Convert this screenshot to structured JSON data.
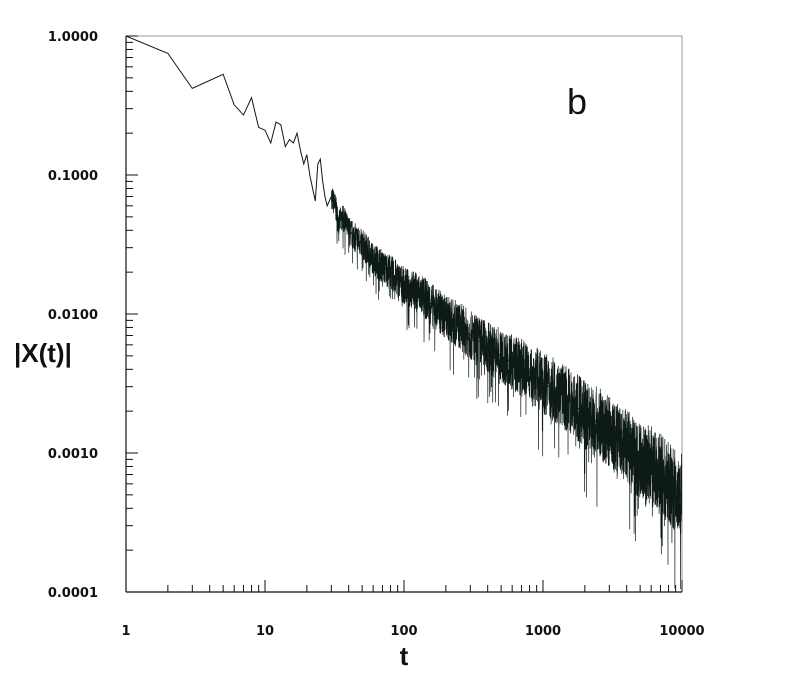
{
  "chart_data": {
    "type": "line",
    "xlabel": "|X(t)|",
    "xlabel_note": "",
    "x_axis_label": "t",
    "y_axis_label": "|X(t)|",
    "panel_label": "b",
    "xscale": "log",
    "yscale": "log",
    "xlim": [
      1,
      10000
    ],
    "ylim": [
      0.0001,
      1.0
    ],
    "x_tick_labels": [
      "1",
      "10",
      "100",
      "1000",
      "10000"
    ],
    "x_tick_values": [
      1,
      10,
      100,
      1000,
      10000
    ],
    "y_tick_labels": [
      "1.0000",
      "0.1000",
      "0.0100",
      "0.0010",
      "0.0001"
    ],
    "y_tick_values": [
      1.0,
      0.1,
      0.01,
      0.001,
      0.0001
    ],
    "grid": false,
    "line_color": "#0d1a17",
    "series": [
      {
        "x": [
          1,
          2,
          3,
          5,
          6,
          7,
          8,
          9,
          10,
          11,
          12,
          13,
          14,
          15,
          16,
          17,
          18,
          19,
          20,
          21,
          22,
          23,
          24,
          25,
          26,
          27,
          28,
          30,
          32,
          34,
          36,
          38,
          40,
          45,
          50,
          60,
          70,
          80,
          100,
          130,
          170,
          200,
          260,
          300,
          400,
          500,
          600,
          800,
          1000,
          1300,
          1600,
          2000,
          2600,
          3000,
          3500,
          4000,
          5000,
          6000,
          7000,
          8000,
          9000,
          10000
        ],
        "y": [
          1.0,
          0.75,
          0.42,
          0.53,
          0.32,
          0.27,
          0.36,
          0.22,
          0.21,
          0.17,
          0.24,
          0.23,
          0.16,
          0.18,
          0.17,
          0.2,
          0.15,
          0.12,
          0.14,
          0.1,
          0.08,
          0.065,
          0.12,
          0.13,
          0.09,
          0.07,
          0.06,
          0.07,
          0.06,
          0.045,
          0.05,
          0.045,
          0.04,
          0.035,
          0.032,
          0.025,
          0.022,
          0.02,
          0.016,
          0.014,
          0.011,
          0.0095,
          0.008,
          0.007,
          0.0058,
          0.005,
          0.0045,
          0.0038,
          0.0032,
          0.0027,
          0.0023,
          0.0019,
          0.0016,
          0.0014,
          0.0012,
          0.0011,
          0.0009,
          0.0008,
          0.0007,
          0.0006,
          0.00055,
          0.0005
        ]
      }
    ]
  }
}
